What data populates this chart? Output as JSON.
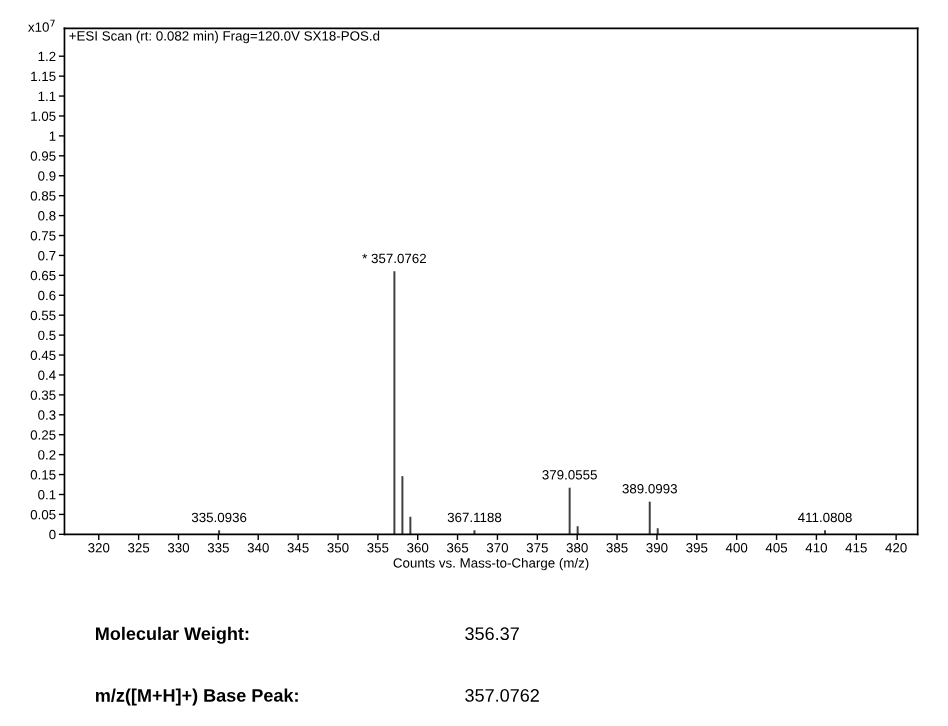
{
  "chart_data": {
    "type": "bar",
    "title": "+ESI Scan (rt: 0.082 min) Frag=120.0V SX18-POS.d",
    "xlabel": "Counts vs. Mass-to-Charge (m/z)",
    "ylabel": "x10$^{7}$",
    "x": [
      335.0936,
      357.0762,
      358.08,
      359.08,
      367.1188,
      379.0555,
      380.06,
      389.0993,
      390.1,
      411.0808
    ],
    "series": [
      {
        "color": "#404040",
        "values": [
          0.01,
          0.66,
          0.146,
          0.044,
          0.01,
          0.117,
          0.02,
          0.082,
          0.015,
          0.01
        ]
      }
    ],
    "xlim": [
      315.7,
      422.7
    ],
    "ylim": [
      0,
      1.27
    ],
    "xticks": [
      320,
      325,
      330,
      335,
      340,
      345,
      350,
      355,
      360,
      365,
      370,
      375,
      380,
      385,
      390,
      395,
      400,
      405,
      410,
      415,
      420
    ],
    "yticks": [
      0,
      0.05,
      0.1,
      0.15,
      0.2,
      0.25,
      0.3,
      0.35,
      0.4,
      0.45,
      0.5,
      0.55,
      0.6,
      0.65,
      0.7,
      0.75,
      0.8,
      0.85,
      0.9,
      0.95,
      1,
      1.05,
      1.1,
      1.15,
      1.2
    ],
    "grid": false,
    "annotations": [
      {
        "text": "335.0936",
        "x": 335.0936,
        "y": 0.01
      },
      {
        "text": "* 357.0762",
        "x": 357.0762,
        "y": 0.66
      },
      {
        "text": "367.1188",
        "x": 367.1188,
        "y": 0.01
      },
      {
        "text": "379.0555",
        "x": 379.0555,
        "y": 0.117
      },
      {
        "text": "389.0993",
        "x": 389.0993,
        "y": 0.082
      },
      {
        "text": "411.0808",
        "x": 411.0808,
        "y": 0.01
      },
      "Molecular Weight:",
      "356.37",
      "m/z([M+H]+) Base Peak:",
      "357.0762"
    ]
  }
}
